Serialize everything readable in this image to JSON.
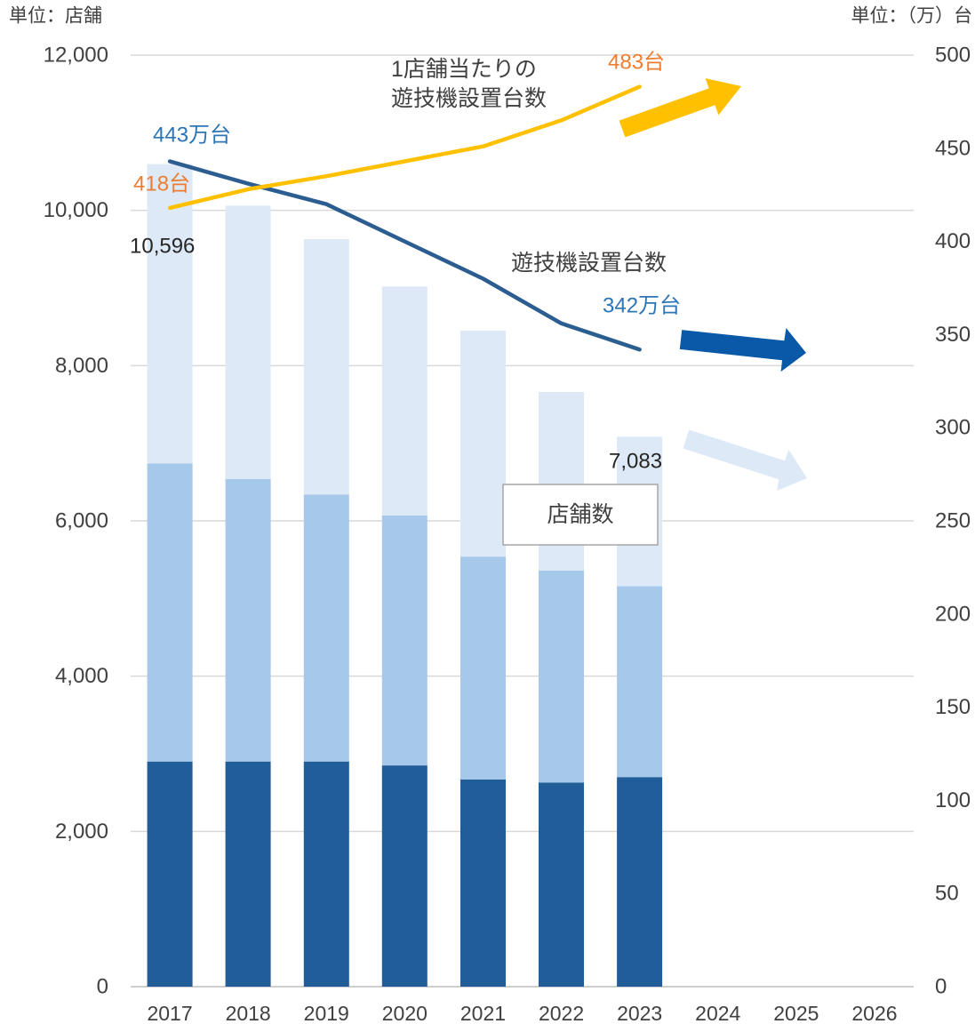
{
  "chart_data": {
    "type": "bar",
    "stacked": true,
    "categories": [
      "2017",
      "2018",
      "2019",
      "2020",
      "2021",
      "2022",
      "2023",
      "2024",
      "2025",
      "2026"
    ],
    "y_left": {
      "unit_label": "単位：店舗",
      "ylim": [
        0,
        12000
      ],
      "ticks": [
        "0",
        "2,000",
        "4,000",
        "6,000",
        "8,000",
        "10,000",
        "12,000"
      ]
    },
    "y_right": {
      "unit_label": "単位：（万）台",
      "ylim": [
        0,
        500
      ],
      "ticks": [
        "0",
        "50",
        "100",
        "150",
        "200",
        "250",
        "300",
        "350",
        "400",
        "450",
        "500"
      ]
    },
    "grid": true,
    "bar_label": "店舗数",
    "bar_series": [
      {
        "values": [
          2900,
          2900,
          2900,
          2850,
          2670,
          2630,
          2700,
          null,
          null,
          null
        ],
        "color": "#215E99"
      },
      {
        "values": [
          3840,
          3640,
          3440,
          3220,
          2870,
          2730,
          2460,
          null,
          null,
          null
        ],
        "color": "#A6C9EB"
      },
      {
        "values": [
          3856,
          3520,
          3290,
          2950,
          2910,
          2300,
          1923,
          null,
          null,
          null
        ],
        "color": "#DDE9F6"
      }
    ],
    "line_series": [
      {
        "name": "遊技機設置台数",
        "values": [
          443,
          431,
          420,
          400,
          380,
          356,
          342,
          null,
          null,
          null
        ],
        "color": "#2B5D91",
        "label_color": "#2E75B6"
      },
      {
        "name_lines": [
          "1店舗当たりの",
          "遊技機設置台数"
        ],
        "values": [
          418,
          428,
          435,
          443,
          451,
          465,
          483,
          null,
          null,
          null
        ],
        "color": "#FFC000",
        "label_color": "#ED7D31"
      }
    ],
    "data_labels": {
      "stores_2017": "10,596",
      "stores_2023": "7,083",
      "machines_2017": "443万台",
      "machines_2023": "342万台",
      "per_store_2017": "418台",
      "per_store_2023": "483台"
    },
    "trend_arrows": {
      "per_store": {
        "color": "#FFC000"
      },
      "machines": {
        "color": "#0A58A8"
      },
      "stores": {
        "color": "#DDE9F6"
      }
    }
  }
}
